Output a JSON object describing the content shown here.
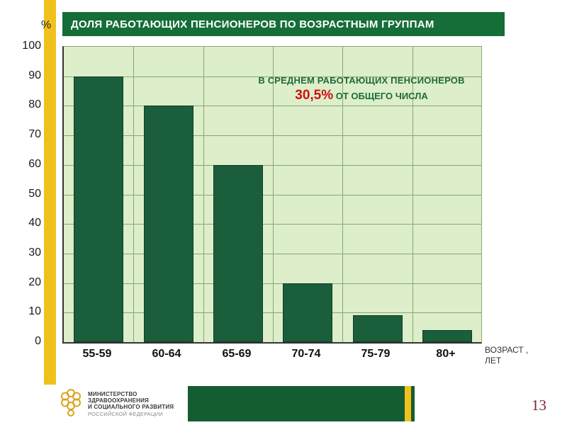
{
  "slide": {
    "title": "ДОЛЯ РАБОТАЮЩИХ ПЕНСИОНЕРОВ ПО ВОЗРАСТНЫМ ГРУППАМ",
    "page_number": "13"
  },
  "chart_data": {
    "type": "bar",
    "title": "ДОЛЯ РАБОТАЮЩИХ ПЕНСИОНЕРОВ ПО ВОЗРАСТНЫМ ГРУППАМ",
    "categories": [
      "55-59",
      "60-64",
      "65-69",
      "70-74",
      "75-79",
      "80+"
    ],
    "values": [
      90,
      80,
      60,
      20,
      9,
      4
    ],
    "ylabel": "%",
    "xlabel": "ВОЗРАСТ, ЛЕТ",
    "ylim": [
      0,
      100
    ],
    "ytick_step": 10,
    "grid": true,
    "legend": "none",
    "bar_color": "#1b5e3c",
    "annotation": {
      "line1": "В СРЕДНЕМ РАБОТАЮЩИХ ПЕНСИОНЕРОВ",
      "highlight": "30,5%",
      "line2_rest": " ОТ ОБЩЕГО ЧИСЛА"
    }
  },
  "axis": {
    "percent_label": "%",
    "x_axis_label_line1": "ВОЗРАСТ ,",
    "x_axis_label_line2": "ЛЕТ"
  },
  "footer": {
    "ministry_line1": "МИНИСТЕРСТВО",
    "ministry_line2": "ЗДРАВООХРАНЕНИЯ",
    "ministry_line3": "И СОЦИАЛЬНОГО РАЗВИТИЯ",
    "ministry_line4": "РОССИЙСКОЙ ФЕДЕРАЦИИ"
  },
  "colors": {
    "title_bg": "#156e38",
    "plot_bg": "#ddeeca",
    "bar": "#1b5e3c",
    "grid": "#8ba671",
    "accent_yellow": "#f0c11a",
    "annotation_red": "#cc1111",
    "page_number": "#7d1f2e"
  }
}
